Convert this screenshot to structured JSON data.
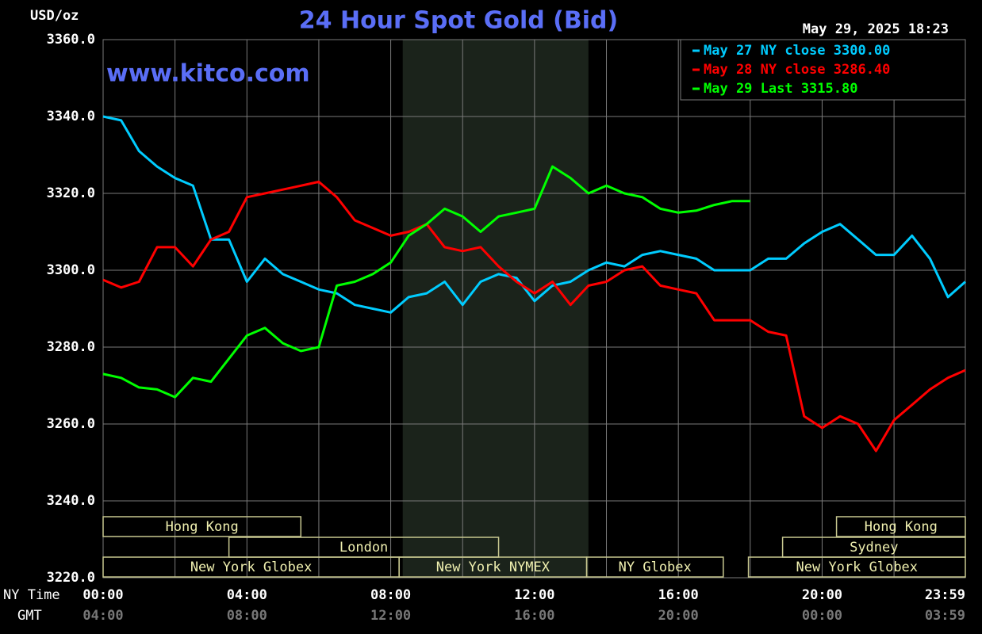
{
  "chart_data": {
    "type": "line",
    "title": "24 Hour Spot Gold (Bid)",
    "y_label": "USD/oz",
    "timestamp": "May 29, 2025 18:23",
    "watermark": "www.kitco.com",
    "x_label": "NY Time",
    "x2_label": "GMT",
    "xlim": [
      0,
      1439
    ],
    "ylim": [
      3220,
      3360
    ],
    "grid": true,
    "legend": "top-right",
    "xticks": [
      {
        "value": 0,
        "label": "00:00"
      },
      {
        "value": 240,
        "label": "04:00"
      },
      {
        "value": 480,
        "label": "08:00"
      },
      {
        "value": 720,
        "label": "12:00"
      },
      {
        "value": 960,
        "label": "16:00"
      },
      {
        "value": 1200,
        "label": "20:00"
      },
      {
        "value": 1439,
        "label": "23:59"
      }
    ],
    "x2ticks": [
      {
        "value": 0,
        "label": "04:00"
      },
      {
        "value": 240,
        "label": "08:00"
      },
      {
        "value": 480,
        "label": "12:00"
      },
      {
        "value": 720,
        "label": "16:00"
      },
      {
        "value": 960,
        "label": "20:00"
      },
      {
        "value": 1200,
        "label": "00:00"
      },
      {
        "value": 1439,
        "label": "03:59"
      }
    ],
    "xgrid": [
      0,
      120,
      240,
      360,
      480,
      600,
      720,
      840,
      960,
      1080,
      1200,
      1320
    ],
    "yticks": [
      {
        "value": 3220,
        "label": "3220.0"
      },
      {
        "value": 3240,
        "label": "3240.0"
      },
      {
        "value": 3260,
        "label": "3260.0"
      },
      {
        "value": 3280,
        "label": "3280.0"
      },
      {
        "value": 3300,
        "label": "3300.0"
      },
      {
        "value": 3320,
        "label": "3320.0"
      },
      {
        "value": 3340,
        "label": "3340.0"
      },
      {
        "value": 3360,
        "label": "3360.0"
      }
    ],
    "shaded_range": [
      500,
      810
    ],
    "sessions": [
      {
        "label": "Hong Kong",
        "row": 0,
        "start": 0,
        "end": 330
      },
      {
        "label": "Hong Kong",
        "row": 0,
        "start": 1224,
        "end": 1439
      },
      {
        "label": "London",
        "row": 1,
        "start": 210,
        "end": 660
      },
      {
        "label": "Sydney",
        "row": 1,
        "start": 1134,
        "end": 1439
      },
      {
        "label": "New York Globex",
        "row": 2,
        "start": 0,
        "end": 494
      },
      {
        "label": "New York NYMEX",
        "row": 2,
        "start": 494,
        "end": 807
      },
      {
        "label": "NY Globex",
        "row": 2,
        "start": 807,
        "end": 1035
      },
      {
        "label": "New York Globex",
        "row": 2,
        "start": 1077,
        "end": 1439
      }
    ],
    "x": [
      0,
      30,
      60,
      90,
      120,
      150,
      180,
      210,
      240,
      270,
      300,
      330,
      360,
      390,
      420,
      450,
      480,
      510,
      540,
      570,
      600,
      630,
      660,
      690,
      720,
      750,
      780,
      810,
      840,
      870,
      900,
      930,
      960,
      990,
      1020,
      1050,
      1080,
      1110,
      1140,
      1170,
      1200,
      1230,
      1260,
      1290,
      1320,
      1350,
      1380,
      1410,
      1439
    ],
    "series": [
      {
        "name": "May 27 NY close 3300.00",
        "color": "#00ccff",
        "values": [
          3340,
          3339,
          3331,
          3327,
          3324,
          3322,
          3308,
          3308,
          3297,
          3303,
          3299,
          3297,
          3295,
          3294,
          3291,
          3290,
          3289,
          3293,
          3294,
          3297,
          3291,
          3297,
          3299,
          3298,
          3292,
          3296,
          3297,
          3300,
          3302,
          3301,
          3304,
          3305,
          3304,
          3303,
          3300,
          3300,
          3300,
          3303,
          3303,
          3307,
          3310,
          3312,
          3308,
          3304,
          3304,
          3309,
          3303,
          3293,
          3297
        ]
      },
      {
        "name": "May 28 NY close 3286.40",
        "color": "#ff0000",
        "values": [
          3297.5,
          3295.5,
          3297,
          3306,
          3306,
          3301,
          3308,
          3310,
          3319,
          3320,
          3321,
          3322,
          3323,
          3319,
          3313,
          3311,
          3309,
          3310,
          3312,
          3306,
          3305,
          3306,
          3301,
          3297,
          3294,
          3297,
          3291,
          3296,
          3297,
          3300,
          3301,
          3296,
          3295,
          3294,
          3287,
          3287,
          3287,
          3284,
          3283,
          3262,
          3259,
          3262,
          3260,
          3253,
          3261,
          3265,
          3269,
          3272,
          3274
        ]
      },
      {
        "name": "May 29 Last 3315.80",
        "color": "#00ff00",
        "values": [
          3273,
          3272,
          3269.5,
          3269,
          3267,
          3272,
          3271,
          3277,
          3283,
          3285,
          3281,
          3279,
          3280,
          3296,
          3297,
          3299,
          3302,
          3309,
          3312,
          3316,
          3314,
          3310,
          3314,
          3315,
          3316,
          3327,
          3324,
          3320,
          3322,
          3320,
          3319,
          3316,
          3315,
          3315.5,
          3317,
          3318,
          3318,
          null,
          null,
          null,
          null,
          null,
          null,
          null,
          null,
          null,
          null,
          null,
          null
        ]
      }
    ]
  }
}
